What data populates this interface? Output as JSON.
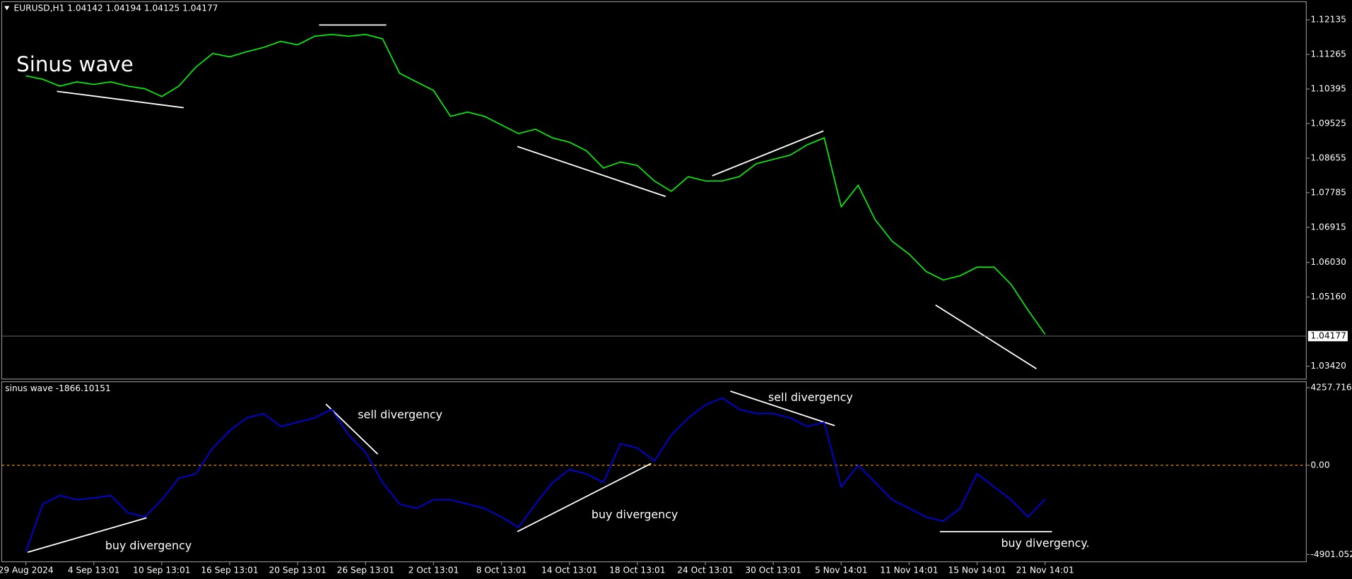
{
  "chart_data": [
    {
      "type": "line",
      "title": "EURUSD,H1  1.04142 1.04194 1.04125 1.04177",
      "categories": [
        "29 Aug 2024",
        null,
        null,
        null,
        "4 Sep 13:01",
        null,
        null,
        null,
        "10 Sep 13:01",
        null,
        null,
        null,
        "16 Sep 13:01",
        null,
        null,
        null,
        "20 Sep 13:01",
        null,
        null,
        null,
        "26 Sep 13:01",
        null,
        null,
        null,
        "2 Oct 13:01",
        null,
        null,
        null,
        "8 Oct 13:01",
        null,
        null,
        null,
        "14 Oct 13:01",
        null,
        null,
        null,
        "18 Oct 13:01",
        null,
        null,
        null,
        "24 Oct 13:01",
        null,
        null,
        null,
        "30 Oct 13:01",
        null,
        null,
        null,
        "5 Nov 14:01",
        null,
        null,
        null,
        "11 Nov 14:01",
        null,
        null,
        null,
        "15 Nov 14:01",
        null,
        null,
        null,
        "21 Nov 14:01"
      ],
      "series": [
        {
          "name": "EURUSD",
          "color": "#00ff00",
          "values": [
            1.10726,
            1.10639,
            1.10466,
            1.10574,
            1.10509,
            1.10574,
            1.10466,
            1.10401,
            1.10205,
            1.10466,
            1.10943,
            1.11289,
            1.11203,
            1.11333,
            1.11441,
            1.11593,
            1.11506,
            1.11723,
            1.11766,
            1.11723,
            1.11766,
            1.11658,
            1.10791,
            1.10574,
            1.10357,
            1.09707,
            1.09815,
            1.09707,
            1.0949,
            1.09273,
            1.09382,
            1.09165,
            1.09056,
            1.0884,
            1.08406,
            1.08558,
            1.08471,
            1.08081,
            1.07821,
            1.08189,
            1.08081,
            1.08081,
            1.08189,
            1.08514,
            1.08623,
            1.08731,
            1.08991,
            1.09165,
            1.0743,
            1.07972,
            1.07105,
            1.06563,
            1.06238,
            1.05804,
            1.05588,
            1.05696,
            1.05913,
            1.05913,
            1.05479,
            1.04829,
            1.04222
          ]
        }
      ],
      "ylim": [
        1.03095,
        1.12569
      ],
      "yticks": [
        1.12135,
        1.11265,
        1.10395,
        1.09525,
        1.08655,
        1.07785,
        1.06915,
        {
          "value": 1.0603,
          "label": "1.06030"
        },
        {
          "value": 1.0516,
          "label": "1.05160"
        },
        {
          "value": 1.0342,
          "label": "1.03420"
        }
      ],
      "last_price": 1.04177,
      "annotations": [
        "Sinus wave"
      ]
    },
    {
      "type": "line",
      "title": "sinus wave -1866.10151",
      "series": [
        {
          "name": "sinus wave",
          "color": "#0000ff",
          "values": [
            -4730,
            -2129,
            -1656,
            -1892,
            -1797,
            -1656,
            -2602,
            -2838,
            -1892,
            -710,
            -473,
            946,
            1892,
            2602,
            2838,
            2129,
            2365,
            2602,
            3075,
            1656,
            710,
            -946,
            -2129,
            -2365,
            -1892,
            -1892,
            -2129,
            -2365,
            -2838,
            -3406,
            -2129,
            -946,
            -237,
            -473,
            -946,
            1183,
            946,
            237,
            1656,
            2602,
            3311,
            3689,
            3075,
            2838,
            2838,
            2602,
            2129,
            2365,
            -1183,
            0,
            -946,
            -1892,
            -2365,
            -2838,
            -3075,
            -2365,
            -473,
            -1183,
            -1892,
            -2838,
            -1866
          ]
        }
      ],
      "ylim": [
        -5298,
        4589
      ],
      "yticks": [
        4257.7169,
        {
          "value": 0,
          "label": "0.00"
        },
        -4901.0527
      ],
      "zero_line_color": "#ffa500",
      "annotations": [
        "sell divergency",
        "buy divergency",
        "buy divergency",
        "sell divergency",
        "buy divergency."
      ]
    }
  ]
}
